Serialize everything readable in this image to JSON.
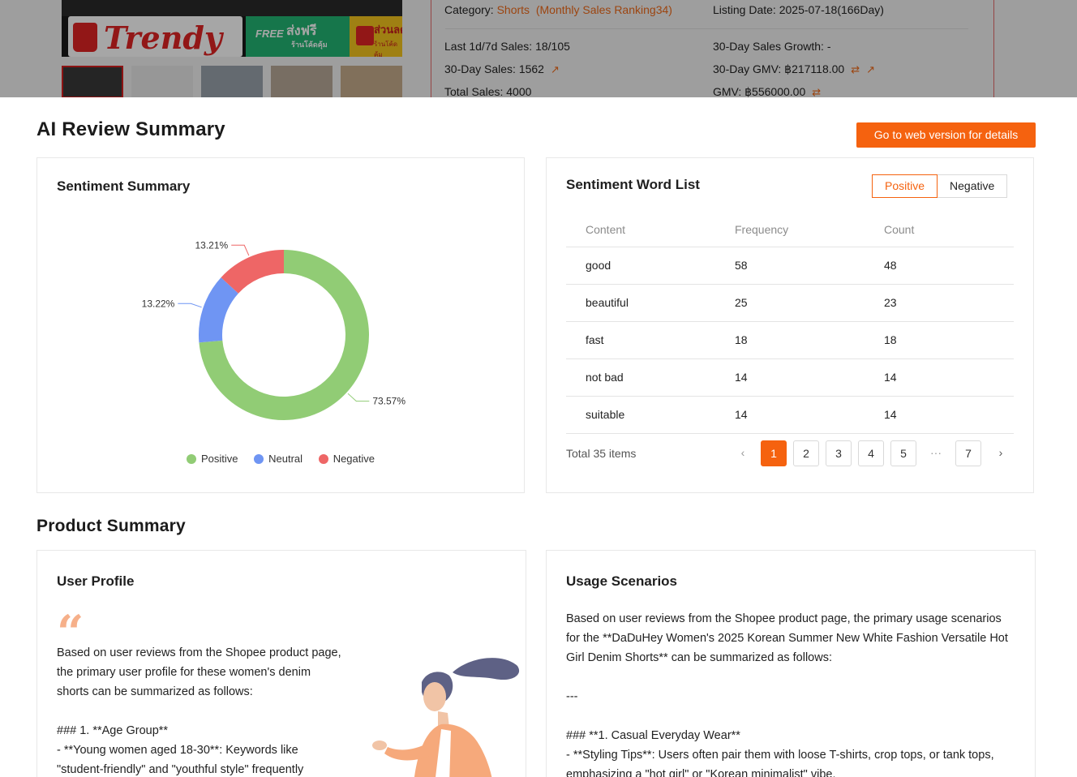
{
  "product_header": {
    "banner": {
      "brand": "Trendy",
      "free_label": "FREE",
      "free_text": "ส่งฟรี",
      "free_sub": "ร้านโค้ดคุ้ม",
      "sale_text": "ส่วนลด",
      "sale_sub": "ร้านโค้ดคุ้ม"
    },
    "category_label": "Category: ",
    "category_value": "Shorts",
    "category_rank": "(Monthly Sales Ranking34)",
    "listing_date": "Listing Date: 2025-07-18(166Day)",
    "last_sales": "Last 1d/7d Sales: 18/105",
    "growth": "30-Day Sales Growth: -",
    "sales_30": "30-Day Sales: 1562",
    "gmv_30": "30-Day GMV: ฿217118.00",
    "total_sales": "Total Sales: 4000",
    "gmv_total": "GMV: ฿556000.00"
  },
  "ai_review": {
    "title": "AI Review Summary",
    "cta_label": "Go to web version for details",
    "sentiment_summary": {
      "title": "Sentiment Summary",
      "legend": [
        "Positive",
        "Neutral",
        "Negative"
      ]
    },
    "word_list": {
      "title": "Sentiment Word List",
      "toggle": [
        "Positive",
        "Negative"
      ],
      "active_toggle": "Positive",
      "columns": [
        "Content",
        "Frequency",
        "Count"
      ],
      "rows": [
        [
          "good",
          "58",
          "48"
        ],
        [
          "beautiful",
          "25",
          "23"
        ],
        [
          "fast",
          "18",
          "18"
        ],
        [
          "not bad",
          "14",
          "14"
        ],
        [
          "suitable",
          "14",
          "14"
        ]
      ],
      "total": "Total 35 items",
      "pages": [
        "1",
        "2",
        "3",
        "4",
        "5",
        "···",
        "7"
      ],
      "current_page": "1"
    }
  },
  "chart_data": {
    "type": "pie",
    "donut": true,
    "categories": [
      "Positive",
      "Neutral",
      "Negative"
    ],
    "values": [
      73.57,
      13.22,
      13.21
    ],
    "labels": [
      "73.57%",
      "13.22%",
      "13.21%"
    ],
    "colors": [
      "#91cc75",
      "#6f95f3",
      "#ee6666"
    ],
    "legend_position": "bottom"
  },
  "product_summary": {
    "title": "Product Summary",
    "user_profile": {
      "title": "User Profile",
      "text": "Based on user reviews from the Shopee product page,\nthe primary user profile for these women's denim\nshorts can be summarized as follows:\n\n### 1. **Age Group**\n- **Young women aged 18-30**: Keywords like\n\"student-friendly\" and \"youthful style\" frequently"
    },
    "usage_scenarios": {
      "title": "Usage Scenarios",
      "text": "Based on user reviews from the Shopee product page, the primary usage scenarios\nfor the **DaDuHey Women's 2025 Korean Summer New White Fashion Versatile Hot\nGirl Denim Shorts** can be summarized as follows:\n\n---\n\n### **1. Casual Everyday Wear**\n- **Styling Tips**: Users often pair them with loose T-shirts, crop tops, or tank tops,\nemphasizing a \"hot girl\" or \"Korean minimalist\" vibe."
    }
  }
}
